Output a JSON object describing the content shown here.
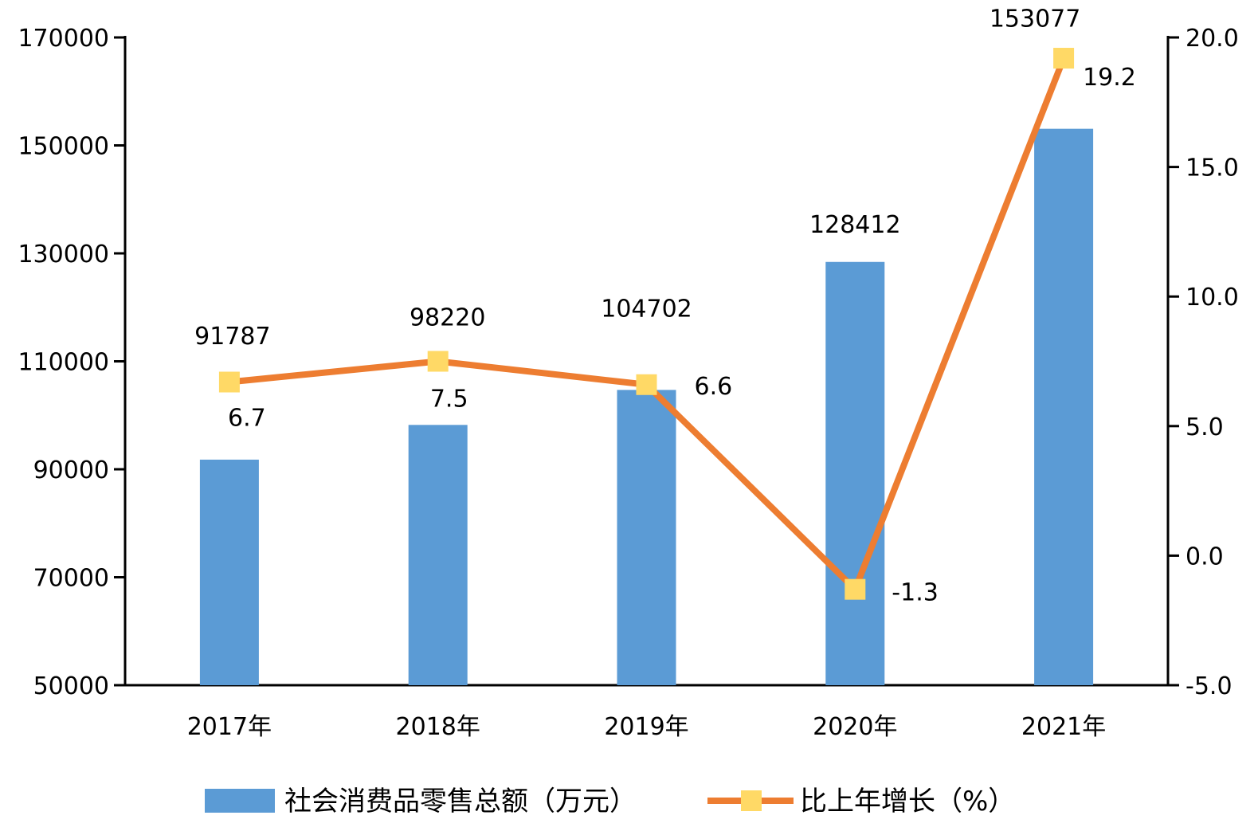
{
  "chart_data": {
    "type": "bar+line",
    "categories": [
      "2017年",
      "2018年",
      "2019年",
      "2020年",
      "2021年"
    ],
    "series": [
      {
        "name": "社会消费品零售总额（万元）",
        "type": "bar",
        "axis": "left",
        "values": [
          91787,
          98220,
          104702,
          128412,
          153077
        ],
        "labels": [
          "91787",
          "98220",
          "104702",
          "128412",
          "153077"
        ],
        "color": "#5B9BD5"
      },
      {
        "name": "比上年增长（%）",
        "type": "line",
        "axis": "right",
        "values": [
          6.7,
          7.5,
          6.6,
          -1.3,
          19.2
        ],
        "labels": [
          "6.7",
          "7.5",
          "6.6",
          "-1.3",
          "19.2"
        ],
        "color": "#ED7D31",
        "marker_color": "#FFD966"
      }
    ],
    "y_left": {
      "ylim": [
        50000,
        170000
      ],
      "ticks": [
        "50000",
        "70000",
        "90000",
        "110000",
        "130000",
        "150000",
        "170000"
      ]
    },
    "y_right": {
      "ylim": [
        -5,
        20
      ],
      "ticks": [
        "-5.0",
        "0.0",
        "5.0",
        "10.0",
        "15.0",
        "20.0"
      ]
    },
    "legend_position": "bottom",
    "grid": false
  }
}
